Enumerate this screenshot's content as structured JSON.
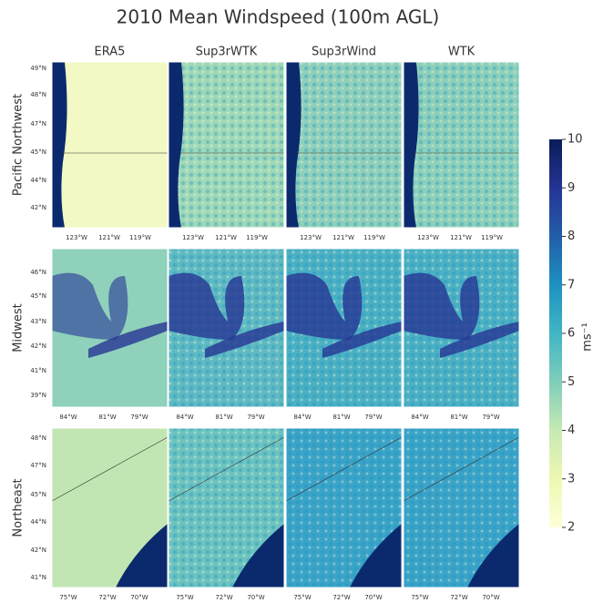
{
  "title": "2010 Mean Windspeed (100m AGL)",
  "columns": [
    "ERA5",
    "Sup3rWTK",
    "Sup3rWind",
    "WTK"
  ],
  "rows": [
    {
      "label": "Pacific Northwest",
      "lat_ticks": [
        "49°N",
        "48°N",
        "47°N",
        "45°N",
        "44°N",
        "42°N"
      ],
      "lon_ticks": [
        "123°W",
        "121°W",
        "119°W"
      ]
    },
    {
      "label": "Midwest",
      "lat_ticks": [
        "46°N",
        "45°N",
        "43°N",
        "42°N",
        "41°N",
        "39°N"
      ],
      "lon_ticks": [
        "84°W",
        "81°W",
        "79°W"
      ]
    },
    {
      "label": "Northeast",
      "lat_ticks": [
        "48°N",
        "47°N",
        "45°N",
        "44°N",
        "42°N",
        "41°N"
      ],
      "lon_ticks": [
        "75°W",
        "72°W",
        "70°W"
      ]
    }
  ],
  "colorbar": {
    "colormap": "YlGnBu",
    "lim": [
      2,
      10
    ],
    "ticks": [
      2,
      3,
      4,
      5,
      6,
      7,
      8,
      9,
      10
    ],
    "label": "ms⁻¹"
  }
}
